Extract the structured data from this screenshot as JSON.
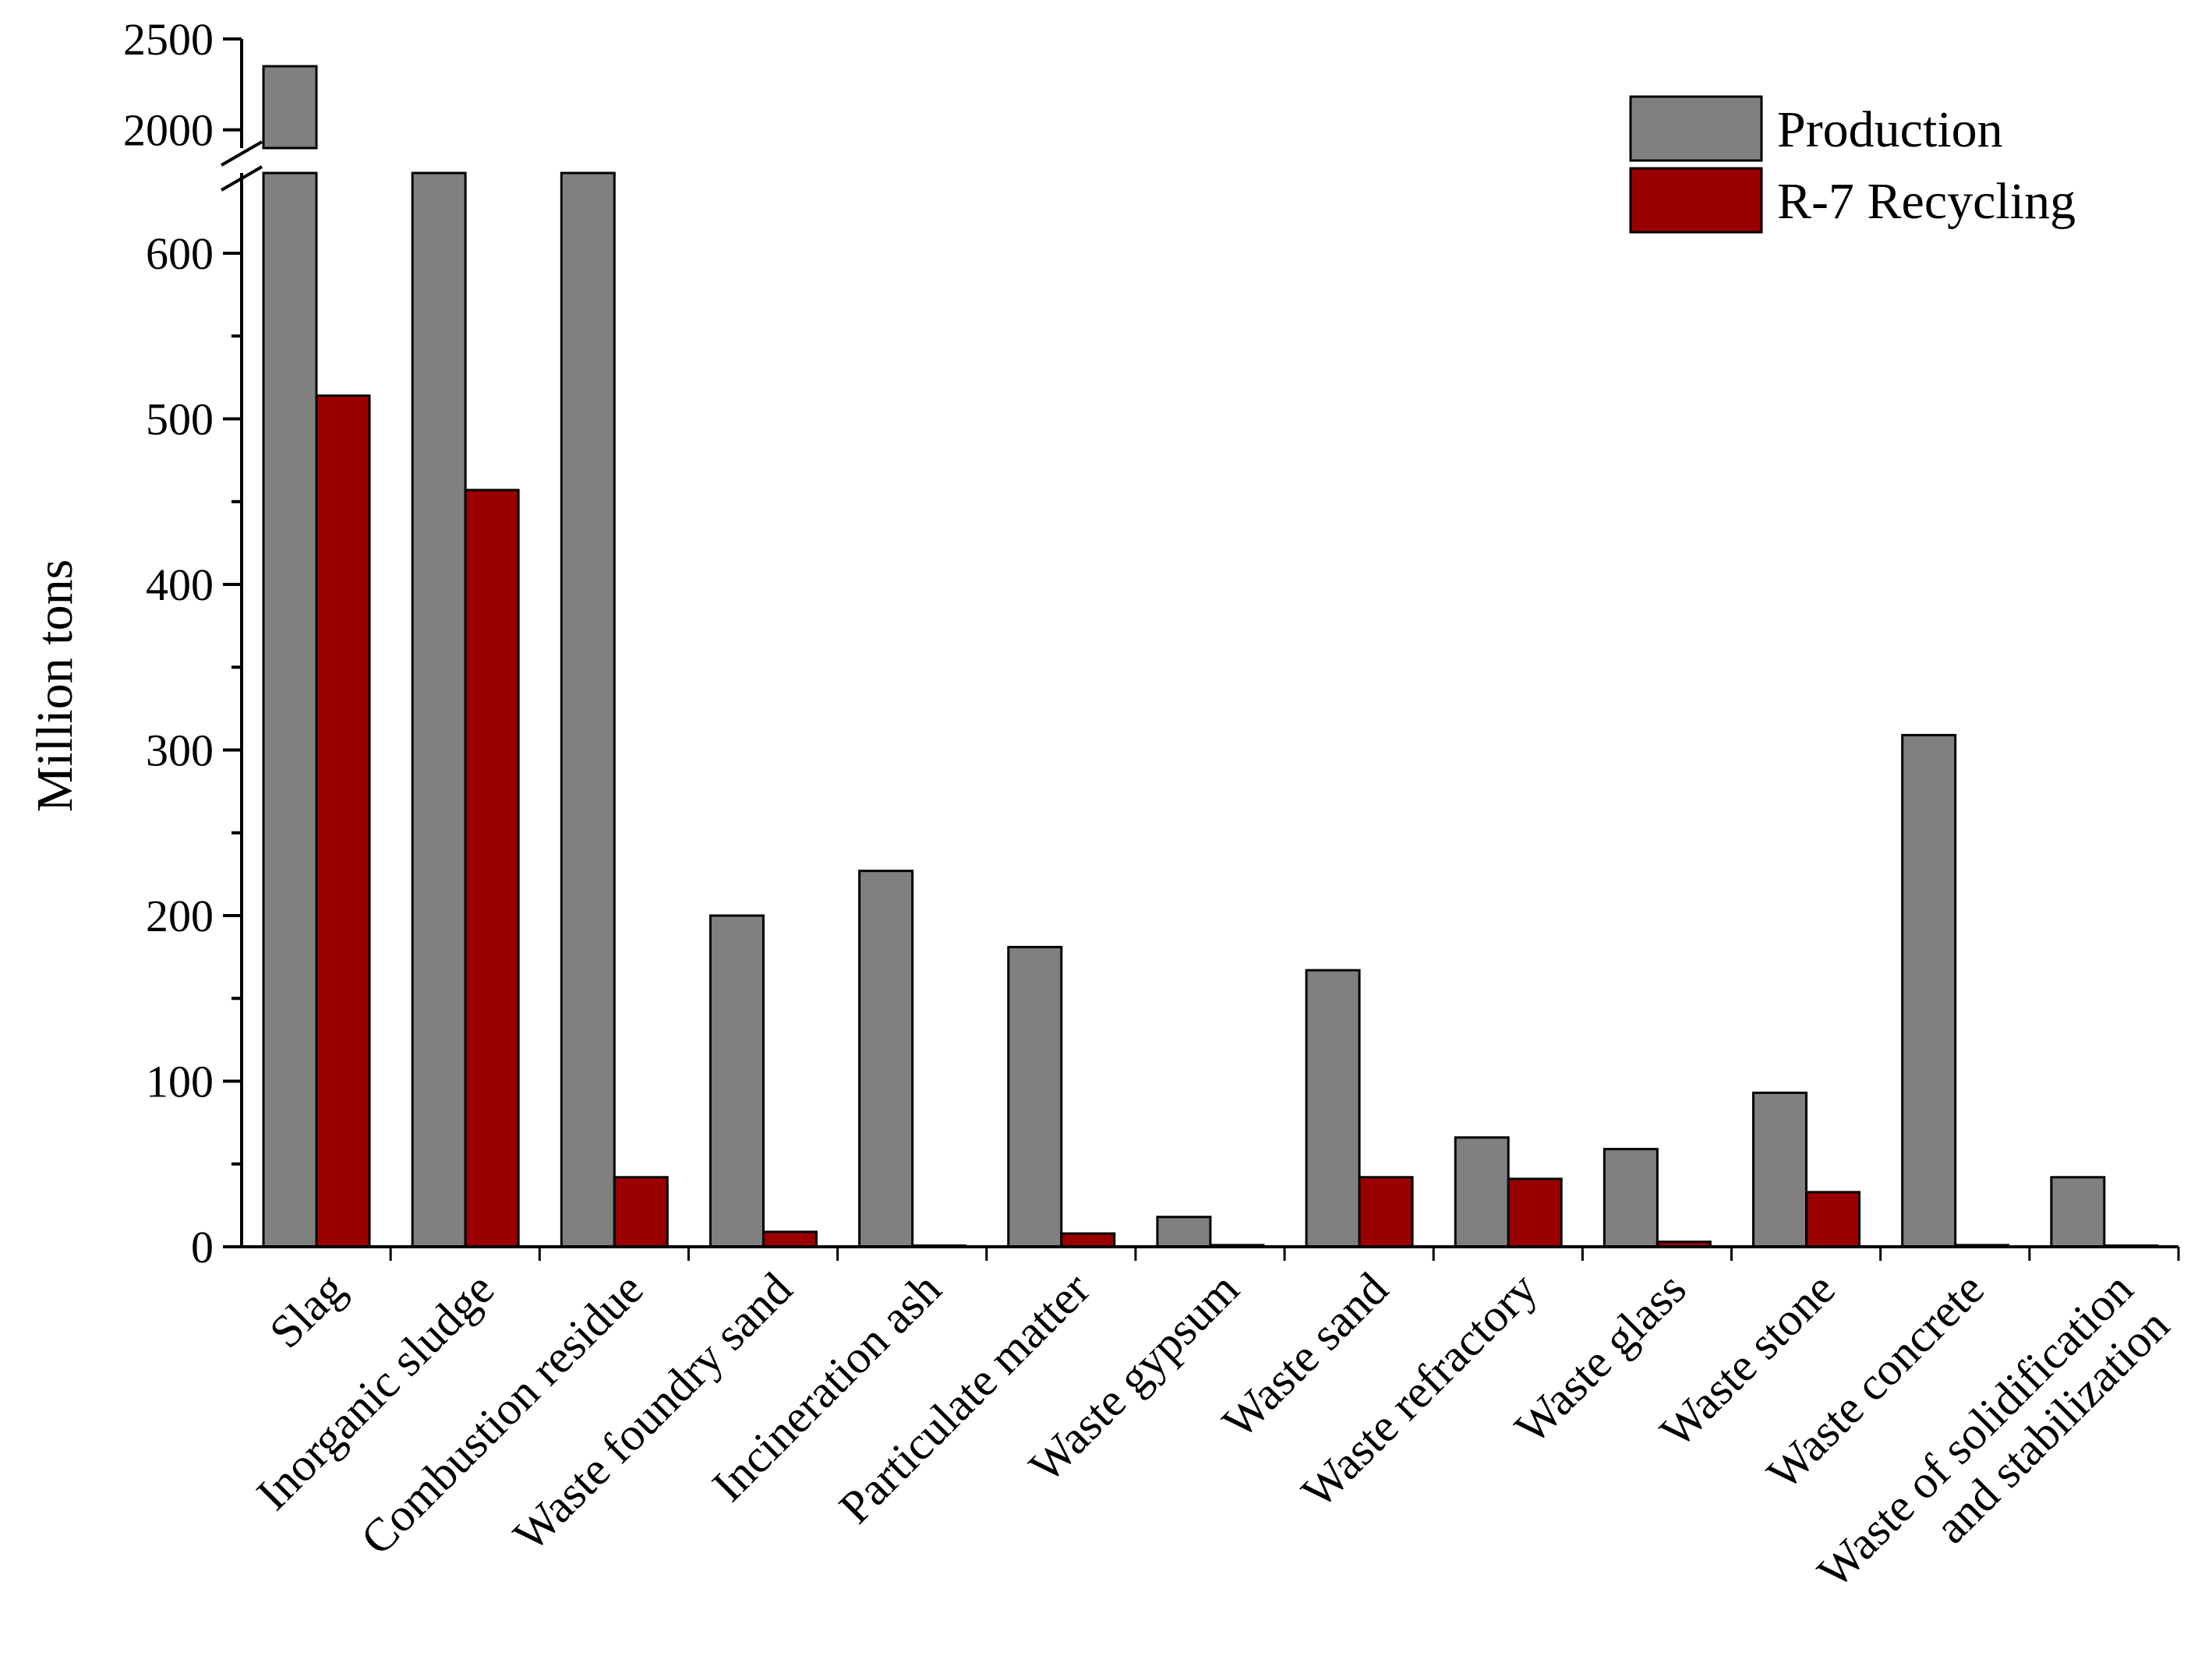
{
  "chart_data": {
    "type": "bar",
    "title": "",
    "xlabel": "",
    "ylabel": "Million tons",
    "categories": [
      [
        "Slag"
      ],
      [
        "Inorganic sludge"
      ],
      [
        "Combustion residue"
      ],
      [
        "Waste foundry sand"
      ],
      [
        "Incineration ash"
      ],
      [
        "Particulate matter"
      ],
      [
        "Waste gypsum"
      ],
      [
        "Waste sand"
      ],
      [
        "Waste refractory"
      ],
      [
        "Waste glass"
      ],
      [
        "Waste stone"
      ],
      [
        "Waste concrete"
      ],
      [
        "Waste of solidification",
        "and stabilization"
      ]
    ],
    "series": [
      {
        "name": "Production",
        "color": "#808080",
        "values": [
          2350,
          700,
          700,
          200,
          227,
          181,
          18,
          167,
          66,
          59,
          93,
          309,
          42
        ]
      },
      {
        "name": "R-7 Recycling",
        "color": "#9b0000",
        "values": [
          514,
          457,
          42,
          9,
          0,
          8,
          1,
          42,
          41,
          3,
          33,
          1,
          0
        ]
      }
    ],
    "axis_break": {
      "lower_range": [
        0,
        650
      ],
      "upper_range": [
        1900,
        2500
      ]
    },
    "yticks_lower": [
      0,
      100,
      200,
      300,
      400,
      500,
      600
    ],
    "yticks_upper": [
      2000,
      2500
    ],
    "legend": "top-right",
    "grid": false
  }
}
